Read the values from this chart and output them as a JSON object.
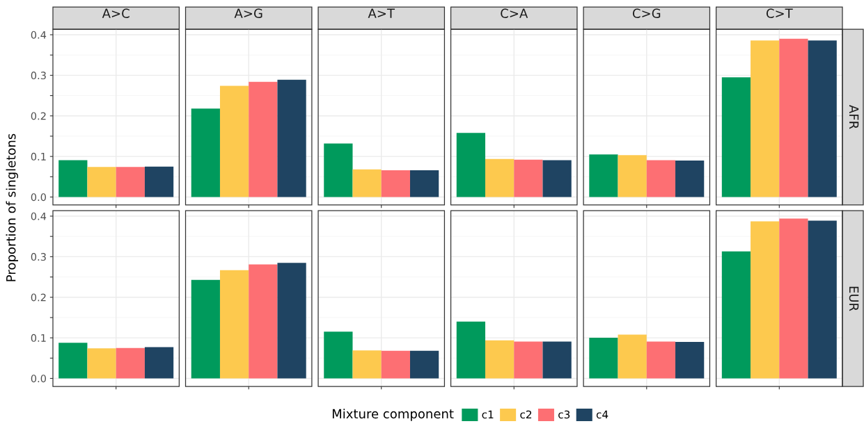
{
  "chart_data": [
    {
      "type": "bar",
      "ylabel": "Proportion of singletons",
      "legend": "bottom",
      "legend_title": "Mixture component",
      "annotations": [
        "AFR"
      ],
      "categories": [
        "A>C",
        "A>G",
        "A>T",
        "C>A",
        "C>G",
        "C>T"
      ],
      "series": [
        {
          "name": "c1",
          "color": "#009a5c",
          "values": [
            0.091,
            0.218,
            0.132,
            0.158,
            0.105,
            0.295
          ]
        },
        {
          "name": "c2",
          "color": "#fdc94e",
          "values": [
            0.074,
            0.274,
            0.068,
            0.094,
            0.103,
            0.386
          ]
        },
        {
          "name": "c3",
          "color": "#fd6f73",
          "values": [
            0.074,
            0.284,
            0.066,
            0.092,
            0.091,
            0.39
          ]
        },
        {
          "name": "c4",
          "color": "#1f4462",
          "values": [
            0.075,
            0.289,
            0.066,
            0.091,
            0.09,
            0.386
          ]
        }
      ],
      "ylim": [
        -0.0197,
        0.4137
      ],
      "yticks": [
        {
          "value": 0,
          "label": "0.0"
        },
        {
          "value": 0.05,
          "label": null
        },
        0.1,
        {
          "value": 0.15,
          "label": null
        },
        0.2,
        {
          "value": 0.25,
          "label": null
        },
        0.3,
        {
          "value": 0.35,
          "label": null
        },
        0.4
      ],
      "grid": true
    },
    {
      "type": "bar",
      "annotations": [
        "EUR"
      ],
      "categories": [
        null,
        null,
        null,
        null,
        null,
        null
      ],
      "series": [
        {
          "name": "c1",
          "color": "#009a5c",
          "values": [
            0.088,
            0.243,
            0.115,
            0.14,
            0.1,
            0.313
          ]
        },
        {
          "name": "c2",
          "color": "#fdc94e",
          "values": [
            0.074,
            0.267,
            0.069,
            0.094,
            0.108,
            0.387
          ]
        },
        {
          "name": "c3",
          "color": "#fd6f73",
          "values": [
            0.075,
            0.281,
            0.068,
            0.091,
            0.091,
            0.394
          ]
        },
        {
          "name": "c4",
          "color": "#1f4462",
          "values": [
            0.077,
            0.285,
            0.068,
            0.091,
            0.09,
            0.389
          ]
        }
      ],
      "ylim": [
        -0.0197,
        0.4137
      ],
      "yticks": [
        {
          "value": 0,
          "label": "0.0"
        },
        {
          "value": 0.05,
          "label": null
        },
        0.1,
        {
          "value": 0.15,
          "label": null
        },
        0.2,
        {
          "value": 0.25,
          "label": null
        },
        0.3,
        {
          "value": 0.35,
          "label": null
        },
        0.4
      ],
      "grid": true,
      "tick_labels": "y"
    }
  ]
}
